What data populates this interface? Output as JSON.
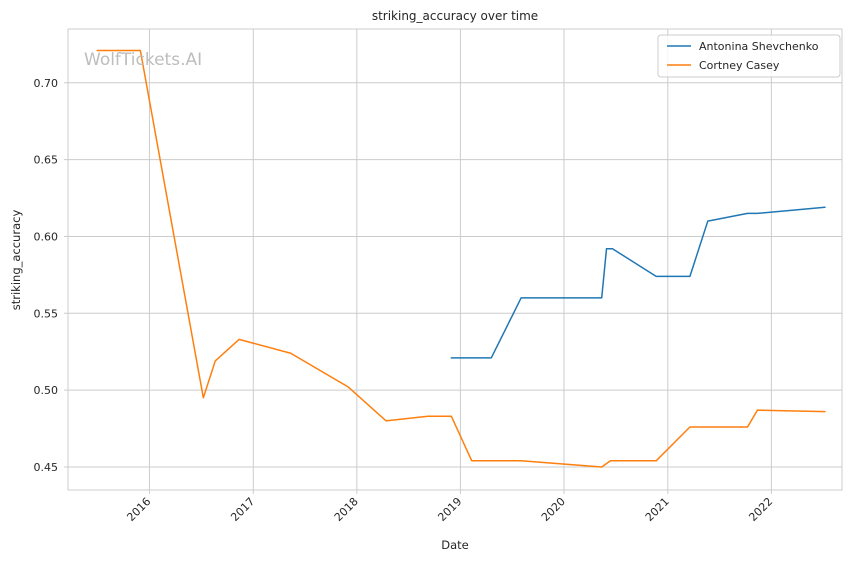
{
  "chart_data": {
    "type": "line",
    "title": "striking_accuracy over time",
    "xlabel": "Date",
    "ylabel": "striking_accuracy",
    "watermark": "WolfTickets.AI",
    "grid": true,
    "legend_position": "top-right",
    "xlim": [
      "2015-03-20",
      "2022-09-07"
    ],
    "ylim": [
      0.435,
      0.735
    ],
    "x_ticks": [
      "2016",
      "2017",
      "2018",
      "2019",
      "2020",
      "2021",
      "2022"
    ],
    "y_ticks": [
      "0.45",
      "0.50",
      "0.55",
      "0.60",
      "0.65",
      "0.70"
    ],
    "series": [
      {
        "name": "Antonina Shevchenko",
        "color": "#1f77b4",
        "points": [
          [
            "2018-11-30",
            0.521
          ],
          [
            "2019-04-20",
            0.521
          ],
          [
            "2019-08-03",
            0.56
          ],
          [
            "2020-05-13",
            0.56
          ],
          [
            "2020-05-30",
            0.592
          ],
          [
            "2020-06-20",
            0.592
          ],
          [
            "2020-11-21",
            0.574
          ],
          [
            "2021-03-20",
            0.574
          ],
          [
            "2021-05-22",
            0.61
          ],
          [
            "2021-10-09",
            0.615
          ],
          [
            "2021-11-13",
            0.615
          ],
          [
            "2022-07-09",
            0.619
          ]
        ]
      },
      {
        "name": "Cortney Casey",
        "color": "#ff7f0e",
        "points": [
          [
            "2015-07-01",
            0.721
          ],
          [
            "2015-11-30",
            0.721
          ],
          [
            "2016-07-09",
            0.495
          ],
          [
            "2016-08-20",
            0.519
          ],
          [
            "2016-11-12",
            0.533
          ],
          [
            "2017-05-13",
            0.524
          ],
          [
            "2017-12-02",
            0.502
          ],
          [
            "2018-04-14",
            0.48
          ],
          [
            "2018-09-08",
            0.483
          ],
          [
            "2018-11-30",
            0.483
          ],
          [
            "2019-02-10",
            0.454
          ],
          [
            "2019-08-03",
            0.454
          ],
          [
            "2020-05-13",
            0.45
          ],
          [
            "2020-06-13",
            0.454
          ],
          [
            "2020-11-21",
            0.454
          ],
          [
            "2021-03-20",
            0.476
          ],
          [
            "2021-10-09",
            0.476
          ],
          [
            "2021-11-13",
            0.487
          ],
          [
            "2022-07-09",
            0.486
          ]
        ]
      }
    ]
  }
}
